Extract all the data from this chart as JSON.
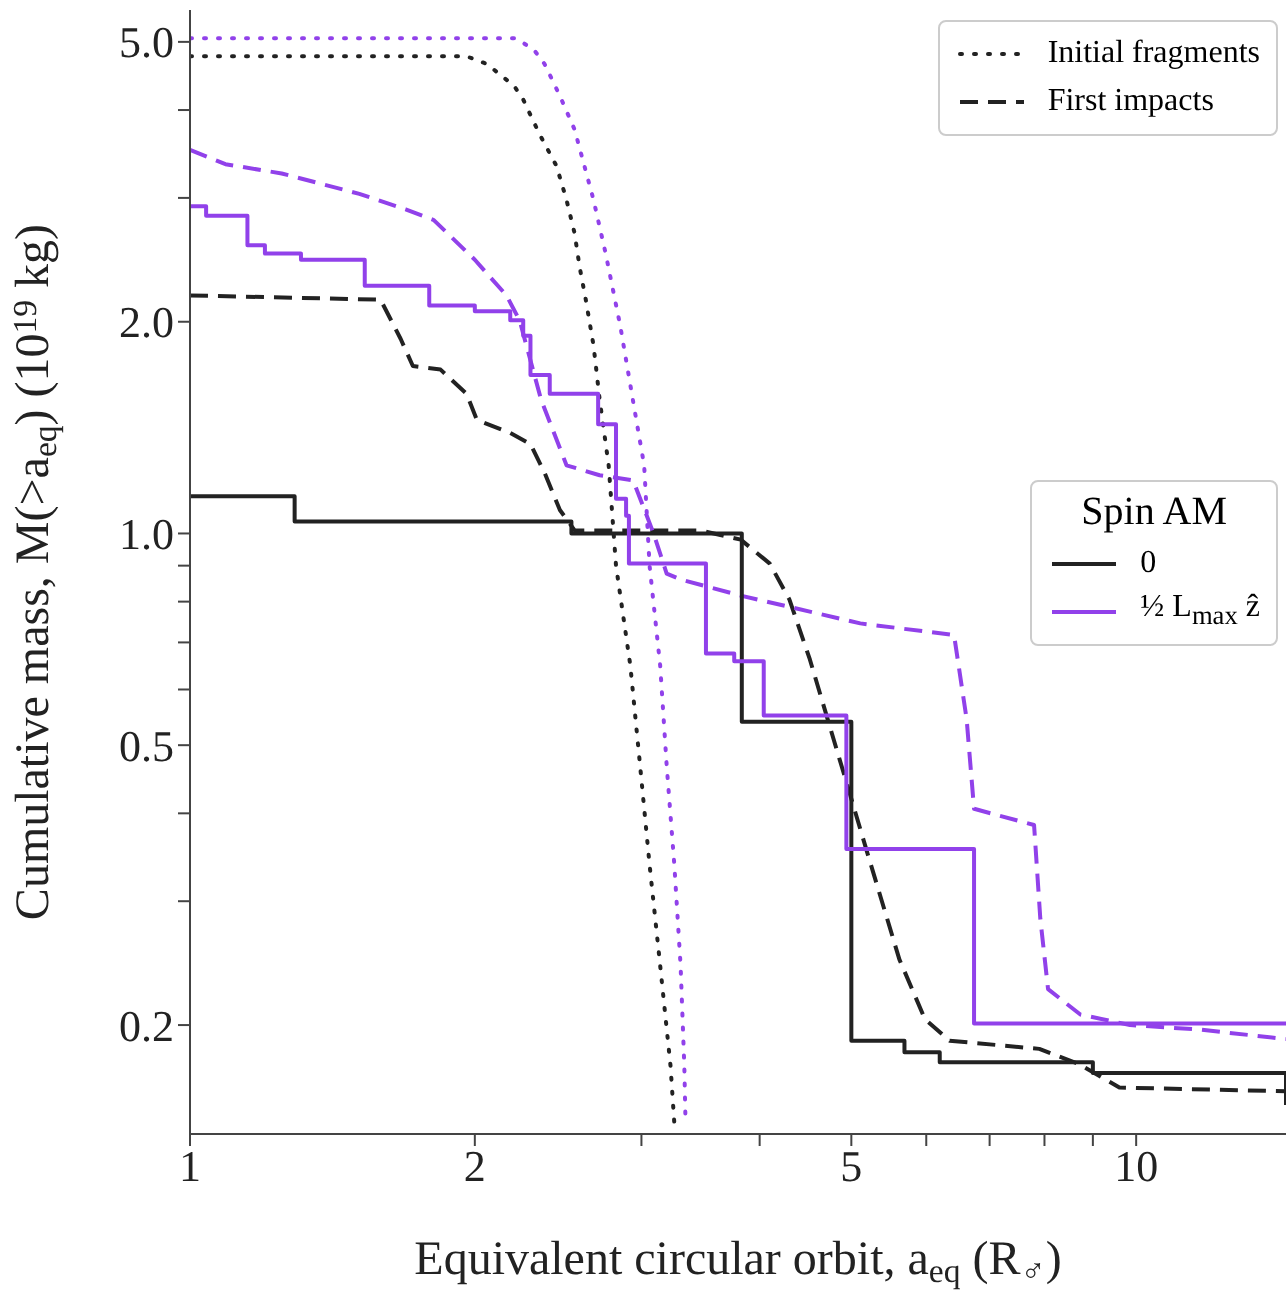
{
  "chart_data": {
    "type": "line",
    "xlabel": "Equivalent circular orbit, a$_{eq}$ (R$_{♂}$)",
    "ylabel": "Cumulative mass, M(>a$_{eq}$) (10$^{19}$ kg)",
    "legend_title": "Spin AM",
    "legend": "right",
    "log": "xy",
    "xlim": [
      1,
      14.4
    ],
    "ylim": [
      0.14,
      5.55
    ],
    "xticks": [
      1,
      2,
      {
        "value": 3,
        "label": null
      },
      {
        "value": 4,
        "label": null
      },
      5,
      {
        "value": 6,
        "label": null
      },
      {
        "value": 7,
        "label": null
      },
      {
        "value": 8,
        "label": null
      },
      {
        "value": 9,
        "label": null
      },
      10
    ],
    "yticks": [
      0.2,
      {
        "value": 0.3,
        "label": null
      },
      {
        "value": 0.4,
        "label": null
      },
      0.5,
      {
        "value": 0.6,
        "label": null
      },
      {
        "value": 0.7,
        "label": null
      },
      {
        "value": 0.8,
        "label": null
      },
      {
        "value": 0.9,
        "label": null
      },
      {
        "value": 1,
        "label": "1.0"
      },
      {
        "value": 2,
        "label": "2.0"
      },
      {
        "value": 3,
        "label": null
      },
      {
        "value": 4,
        "label": null
      },
      {
        "value": 5,
        "label": "5.0"
      }
    ],
    "series": [
      {
        "name": "Initial fragments",
        "line_style": "dotted",
        "color": "#222222",
        "x": [
          1,
          1.96,
          2.06,
          2.2,
          2.25,
          2.34,
          2.44,
          2.5,
          2.55,
          2.58,
          2.62,
          2.67,
          2.71,
          2.77,
          2.82,
          2.92,
          2.99,
          3.06,
          3.14,
          3.22,
          3.25
        ],
        "values": [
          4.77,
          4.77,
          4.65,
          4.33,
          4.14,
          3.7,
          3.33,
          2.98,
          2.67,
          2.4,
          2.15,
          1.85,
          1.55,
          1.25,
          0.9,
          0.649,
          0.468,
          0.338,
          0.243,
          0.175,
          0.145
        ]
      },
      {
        "line_style": "dotted",
        "color": "#9141ea",
        "x": [
          1,
          2.21,
          2.31,
          2.37,
          2.46,
          2.55,
          2.67,
          2.75,
          2.85,
          2.95,
          3.02,
          3.06,
          3.14,
          3.19,
          3.25,
          3.3,
          3.33,
          3.34
        ],
        "values": [
          5.06,
          5.06,
          4.87,
          4.65,
          4.19,
          3.75,
          2.98,
          2.5,
          1.97,
          1.5,
          1.25,
          0.9,
          0.649,
          0.468,
          0.338,
          0.243,
          0.175,
          0.145
        ]
      },
      {
        "name": "First impacts",
        "line_style": "dashed",
        "color": "#222222",
        "x": [
          1,
          1.59,
          1.67,
          1.72,
          1.84,
          1.96,
          2.01,
          2.18,
          2.29,
          2.37,
          2.46,
          2.55,
          3.46,
          3.82,
          4.1,
          4.3,
          4.52,
          4.86,
          5.22,
          5.62,
          5.98,
          6.35,
          7.9,
          8.7,
          9.6,
          14.4
        ],
        "values": [
          2.18,
          2.15,
          1.89,
          1.73,
          1.71,
          1.58,
          1.45,
          1.39,
          1.34,
          1.22,
          1.08,
          1.01,
          1.01,
          0.98,
          0.906,
          0.806,
          0.662,
          0.477,
          0.345,
          0.248,
          0.204,
          0.19,
          0.185,
          0.176,
          0.163,
          0.161
        ]
      },
      {
        "line_style": "dashed",
        "color": "#9141ea",
        "x": [
          1,
          1.09,
          1.25,
          1.51,
          1.69,
          1.81,
          2.0,
          2.16,
          2.23,
          2.35,
          2.5,
          2.71,
          2.94,
          3.09,
          3.19,
          3.3,
          3.82,
          5.11,
          6.42,
          6.62,
          6.74,
          7.8,
          7.92,
          8.07,
          8.73,
          9.85,
          11.7,
          14.4
        ],
        "values": [
          3.51,
          3.35,
          3.25,
          3.04,
          2.89,
          2.79,
          2.45,
          2.18,
          2.01,
          1.55,
          1.25,
          1.21,
          1.19,
          1.0,
          0.877,
          0.86,
          0.816,
          0.745,
          0.717,
          0.544,
          0.406,
          0.385,
          0.283,
          0.225,
          0.207,
          0.2,
          0.197,
          0.191
        ]
      },
      {
        "name": "0",
        "type": "step",
        "line_style": "solid",
        "color": "#222222",
        "x": [
          1,
          1.29,
          2.53,
          3.83,
          5.0,
          5.69,
          6.2,
          9.0,
          14.4
        ],
        "values": [
          1.13,
          1.04,
          1.0,
          0.54,
          0.19,
          0.183,
          0.177,
          0.171,
          0.154
        ]
      },
      {
        "name": "½ L$_{max}$ ẑ",
        "type": "step",
        "line_style": "solid",
        "color": "#9141ea",
        "x": [
          1,
          1.04,
          1.15,
          1.2,
          1.31,
          1.53,
          1.79,
          2.0,
          2.18,
          2.25,
          2.29,
          2.4,
          2.7,
          2.82,
          2.89,
          2.91,
          3.51,
          3.76,
          4.04,
          4.94,
          6.74,
          14.4
        ],
        "values": [
          2.92,
          2.83,
          2.57,
          2.5,
          2.45,
          2.25,
          2.11,
          2.07,
          2.01,
          1.91,
          1.68,
          1.58,
          1.43,
          1.12,
          1.06,
          0.906,
          0.675,
          0.658,
          0.551,
          0.356,
          0.201,
          0.201
        ]
      }
    ]
  }
}
